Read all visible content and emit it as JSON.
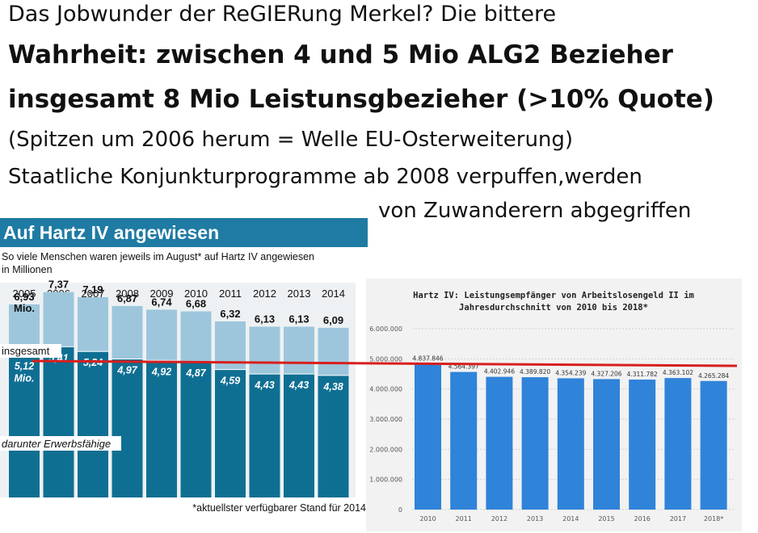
{
  "headline": {
    "line1": "Das Jobwunder der ReGIERung Merkel? Die bittere",
    "line2": "Wahrheit: zwischen 4 und 5 Mio ALG2 Bezieher",
    "line3": "insgesamt 8 Mio Leistunsgbezieher (>10% Quote)",
    "line4": "(Spitzen um 2006 herum = Welle EU-Osterweiterung)",
    "line5": "Staatliche Konjunkturprogramme ab 2008 verpuffen,werden",
    "line6": "von Zuwanderern abgegriffen"
  },
  "colors": {
    "left_header": "#1f7ba3",
    "left_total": "#9dc6dc",
    "left_workable": "#0f6f93",
    "right_bar": "#2f83d9",
    "red_line": "#d81e1e"
  },
  "chart_data": [
    {
      "type": "bar",
      "title": "Auf Hartz IV angewiesen",
      "subtitle_line1": "So viele Menschen waren jeweils im August* auf Hartz IV angewiesen",
      "subtitle_line2": "in Millionen",
      "categories": [
        "2005",
        "2006",
        "2007",
        "2008",
        "2009",
        "2010",
        "2011",
        "2012",
        "2013",
        "2014"
      ],
      "series": [
        {
          "name": "insgesamt",
          "values": [
            6.93,
            7.37,
            7.19,
            6.87,
            6.74,
            6.68,
            6.32,
            6.13,
            6.13,
            6.09
          ],
          "labels": [
            "6,93",
            "7,37",
            "7,19",
            "6,87",
            "6,74",
            "6,68",
            "6,32",
            "6,13",
            "6,13",
            "6,09"
          ]
        },
        {
          "name": "darunter Erwerbsfähige",
          "values": [
            5.12,
            5.41,
            5.24,
            4.97,
            4.92,
            4.87,
            4.59,
            4.43,
            4.43,
            4.38
          ],
          "labels": [
            "5,12",
            "5,41",
            "5,24",
            "4,97",
            "4,92",
            "4,87",
            "4,59",
            "4,43",
            "4,43",
            "4,38"
          ]
        }
      ],
      "first_total_unit": "Mio.",
      "first_workable_unit": "Mio.",
      "legend_total": "insgesamt",
      "legend_workable": "darunter Erwerbsfähige",
      "footnote": "*aktuellster verfügbarer Stand für 2014",
      "ylim": [
        0,
        8
      ]
    },
    {
      "type": "bar",
      "title_line1": "Hartz IV: Leistungsempfänger von Arbeitslosengeld II im",
      "title_line2": "Jahresdurchschnitt von 2010 bis 2018*",
      "categories": [
        "2010",
        "2011",
        "2012",
        "2013",
        "2014",
        "2015",
        "2016",
        "2017",
        "2018*"
      ],
      "values": [
        4837846,
        4564397,
        4402946,
        4389820,
        4354239,
        4327206,
        4311782,
        4363102,
        4265284
      ],
      "value_labels": [
        "4.837.846",
        "4.564.397",
        "4.402.946",
        "4.389.820",
        "4.354.239",
        "4.327.206",
        "4.311.782",
        "4.363.102",
        "4.265.284"
      ],
      "yticks": [
        0,
        1000000,
        2000000,
        3000000,
        4000000,
        5000000,
        6000000
      ],
      "ytick_labels": [
        "0",
        "1.000.000",
        "2.000.000",
        "3.000.000",
        "4.000.000",
        "5.000.000",
        "6.000.000"
      ],
      "ylim": [
        0,
        6000000
      ],
      "grid": true
    }
  ]
}
